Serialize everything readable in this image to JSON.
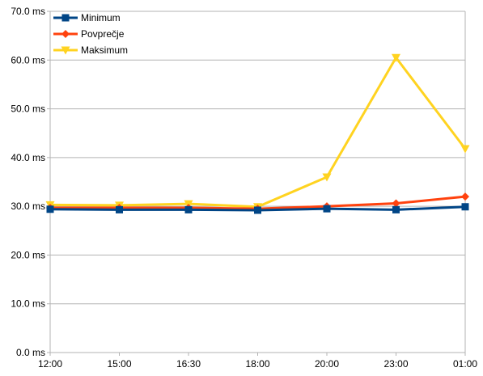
{
  "chart_data": {
    "type": "line",
    "categories": [
      "12:00",
      "15:00",
      "16:30",
      "18:00",
      "20:00",
      "23:00",
      "01:00"
    ],
    "ylim": [
      0,
      70
    ],
    "y_ticks": [
      "0.0 ms",
      "10.0 ms",
      "20.0 ms",
      "30.0 ms",
      "40.0 ms",
      "50.0 ms",
      "60.0 ms",
      "70.0 ms"
    ],
    "y_tick_values": [
      0,
      10,
      20,
      30,
      40,
      50,
      60,
      70
    ],
    "grid": "horizontal",
    "legend_position": "top-left",
    "series": [
      {
        "name": "Minimum",
        "color": "#004586",
        "marker": "square",
        "values": [
          29.4,
          29.3,
          29.3,
          29.2,
          29.5,
          29.3,
          29.9
        ]
      },
      {
        "name": "Povprečje",
        "color": "#ff420e",
        "marker": "diamond",
        "values": [
          29.7,
          29.7,
          29.7,
          29.5,
          30.0,
          30.6,
          32.0
        ]
      },
      {
        "name": "Maksimum",
        "color": "#ffd320",
        "marker": "triangle-down",
        "values": [
          30.3,
          30.2,
          30.5,
          29.9,
          36.0,
          60.5,
          41.8
        ]
      }
    ]
  }
}
